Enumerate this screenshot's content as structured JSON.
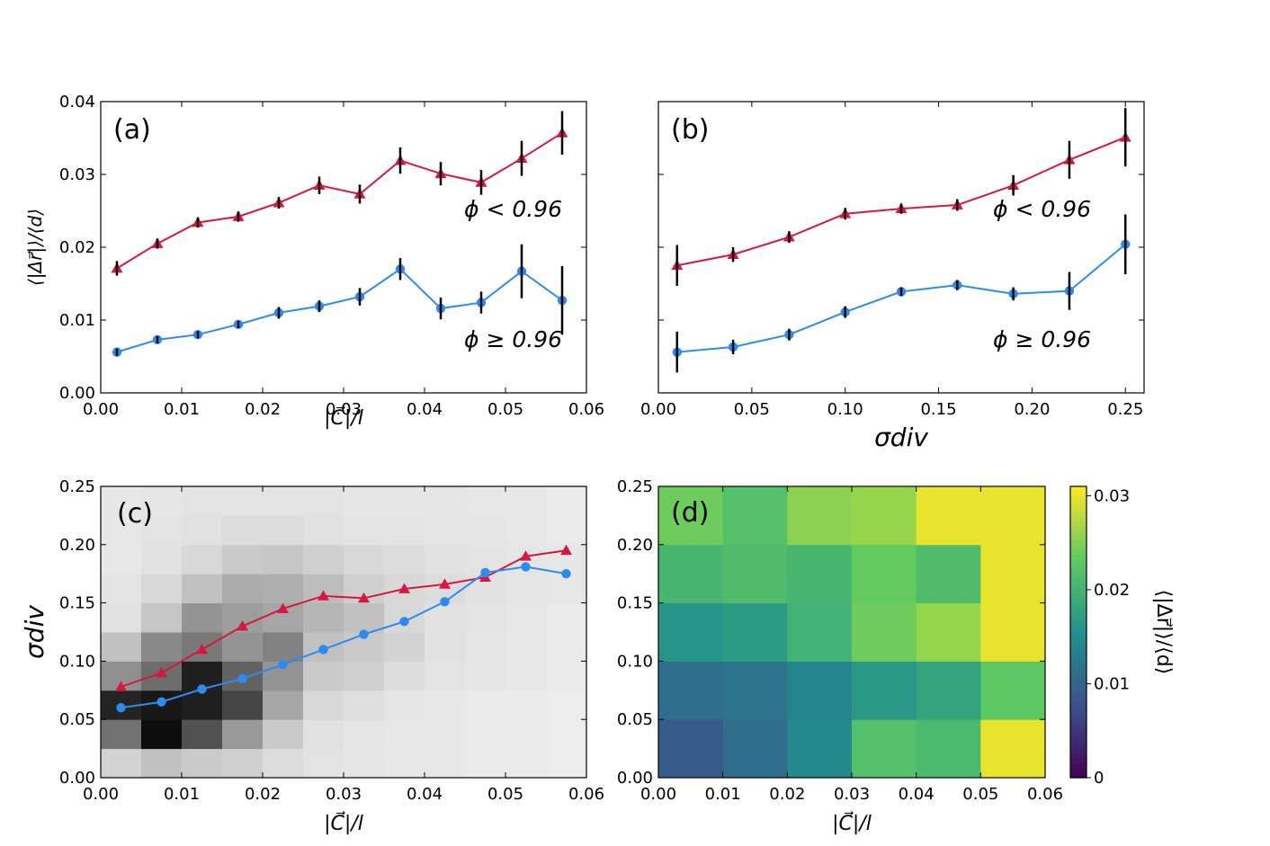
{
  "colors": {
    "red": "#d6173f",
    "blue": "#2b8cee",
    "errbar": "#000000"
  },
  "chart_data": [
    {
      "panel": "a",
      "type": "line",
      "label": "(a)",
      "xlabel": "|C⃗|/l",
      "ylabel": "⟨|Δr⃗|⟩/⟨d⟩",
      "xlim": [
        0.0,
        0.06
      ],
      "ylim": [
        0.0,
        0.04
      ],
      "xticks": [
        "0.00",
        "0.01",
        "0.02",
        "0.03",
        "0.04",
        "0.05",
        "0.06"
      ],
      "yticks": [
        "0.00",
        "0.01",
        "0.02",
        "0.03",
        "0.04"
      ],
      "x": [
        0.002,
        0.007,
        0.012,
        0.017,
        0.022,
        0.027,
        0.032,
        0.037,
        0.042,
        0.047,
        0.052,
        0.057
      ],
      "series": [
        {
          "name": "ϕ < 0.96",
          "marker": "triangle",
          "color": "#d6173f",
          "values": [
            0.0171,
            0.0205,
            0.0234,
            0.0242,
            0.0261,
            0.0285,
            0.0273,
            0.0319,
            0.0301,
            0.0289,
            0.0322,
            0.0357
          ],
          "errors": [
            0.001,
            0.0007,
            0.0007,
            0.0007,
            0.0008,
            0.0012,
            0.0013,
            0.0018,
            0.0016,
            0.0017,
            0.0024,
            0.003
          ]
        },
        {
          "name": "ϕ ≥ 0.96",
          "marker": "circle",
          "color": "#2b8cee",
          "values": [
            0.0056,
            0.0073,
            0.008,
            0.0094,
            0.011,
            0.0119,
            0.0132,
            0.017,
            0.0116,
            0.0124,
            0.0167,
            0.0127
          ],
          "errors": [
            0.0005,
            0.0005,
            0.0005,
            0.0005,
            0.0008,
            0.0008,
            0.0012,
            0.0015,
            0.0015,
            0.0015,
            0.0037,
            0.0047
          ]
        }
      ],
      "annotations": [
        "ϕ < 0.96",
        "ϕ ≥ 0.96"
      ]
    },
    {
      "panel": "b",
      "type": "line",
      "label": "(b)",
      "xlabel": "σdiv",
      "xlim": [
        0.0,
        0.26
      ],
      "ylim": [
        0.0,
        0.04
      ],
      "xticks": [
        "0.00",
        "0.05",
        "0.10",
        "0.15",
        "0.20",
        "0.25"
      ],
      "x": [
        0.01,
        0.04,
        0.07,
        0.1,
        0.13,
        0.16,
        0.19,
        0.22,
        0.25
      ],
      "series": [
        {
          "name": "ϕ < 0.96",
          "marker": "triangle",
          "color": "#d6173f",
          "values": [
            0.0175,
            0.019,
            0.0214,
            0.0246,
            0.0253,
            0.0258,
            0.0285,
            0.032,
            0.0351
          ],
          "errors": [
            0.0028,
            0.001,
            0.0008,
            0.0008,
            0.0007,
            0.0008,
            0.0014,
            0.0026,
            0.004
          ]
        },
        {
          "name": "ϕ ≥ 0.96",
          "marker": "circle",
          "color": "#2b8cee",
          "values": [
            0.0056,
            0.0063,
            0.008,
            0.0111,
            0.0139,
            0.0148,
            0.0136,
            0.014,
            0.0204
          ],
          "errors": [
            0.0028,
            0.001,
            0.0008,
            0.0008,
            0.0006,
            0.0007,
            0.0009,
            0.0026,
            0.0041
          ]
        }
      ],
      "annotations": [
        "ϕ < 0.96",
        "ϕ ≥ 0.96"
      ]
    },
    {
      "panel": "c",
      "type": "heatmap",
      "label": "(c)",
      "xlabel": "|C⃗|/l",
      "ylabel": "σdiv",
      "xlim": [
        0.0,
        0.06
      ],
      "ylim": [
        0.0,
        0.25
      ],
      "xticks": [
        "0.00",
        "0.01",
        "0.02",
        "0.03",
        "0.04",
        "0.05",
        "0.06"
      ],
      "yticks": [
        "0.00",
        "0.05",
        "0.10",
        "0.15",
        "0.20",
        "0.25"
      ],
      "grid_x_edges": [
        0.0,
        0.005,
        0.01,
        0.015,
        0.02,
        0.025,
        0.03,
        0.035,
        0.04,
        0.045,
        0.05,
        0.055,
        0.06
      ],
      "grid_y_edges": [
        0.0,
        0.025,
        0.05,
        0.075,
        0.1,
        0.125,
        0.15,
        0.175,
        0.2,
        0.225,
        0.25
      ],
      "density": [
        [
          0.12,
          0.2,
          0.16,
          0.14,
          0.08,
          0.05,
          0.04,
          0.03,
          0.03,
          0.02,
          0.02,
          0.01
        ],
        [
          0.55,
          1.0,
          0.7,
          0.38,
          0.16,
          0.06,
          0.04,
          0.03,
          0.03,
          0.02,
          0.02,
          0.01
        ],
        [
          0.9,
          0.95,
          0.92,
          0.75,
          0.32,
          0.1,
          0.07,
          0.04,
          0.03,
          0.02,
          0.02,
          0.01
        ],
        [
          0.42,
          0.58,
          0.92,
          0.62,
          0.4,
          0.16,
          0.14,
          0.08,
          0.05,
          0.04,
          0.03,
          0.02
        ],
        [
          0.2,
          0.45,
          0.52,
          0.4,
          0.48,
          0.2,
          0.16,
          0.12,
          0.06,
          0.04,
          0.03,
          0.02
        ],
        [
          0.06,
          0.18,
          0.4,
          0.36,
          0.32,
          0.25,
          0.2,
          0.1,
          0.06,
          0.05,
          0.03,
          0.02
        ],
        [
          0.05,
          0.1,
          0.2,
          0.3,
          0.28,
          0.22,
          0.14,
          0.1,
          0.08,
          0.06,
          0.04,
          0.03
        ],
        [
          0.03,
          0.06,
          0.1,
          0.16,
          0.18,
          0.14,
          0.1,
          0.08,
          0.06,
          0.05,
          0.04,
          0.03
        ],
        [
          0.03,
          0.05,
          0.06,
          0.08,
          0.08,
          0.06,
          0.05,
          0.05,
          0.04,
          0.04,
          0.03,
          0.02
        ],
        [
          0.03,
          0.04,
          0.05,
          0.05,
          0.05,
          0.05,
          0.04,
          0.04,
          0.04,
          0.03,
          0.03,
          0.02
        ]
      ],
      "x": [
        0.0025,
        0.0075,
        0.0125,
        0.0175,
        0.0225,
        0.0275,
        0.0325,
        0.0375,
        0.0425,
        0.0475,
        0.0525,
        0.0575
      ],
      "series": [
        {
          "name": "ϕ < 0.96",
          "marker": "triangle",
          "color": "#d6173f",
          "values": [
            0.078,
            0.09,
            0.11,
            0.13,
            0.145,
            0.156,
            0.154,
            0.162,
            0.166,
            0.172,
            0.19,
            0.195
          ]
        },
        {
          "name": "ϕ ≥ 0.96",
          "marker": "circle",
          "color": "#2b8cee",
          "values": [
            0.06,
            0.065,
            0.076,
            0.085,
            0.097,
            0.11,
            0.123,
            0.134,
            0.151,
            0.176,
            0.181,
            0.175
          ]
        }
      ]
    },
    {
      "panel": "d",
      "type": "heatmap",
      "label": "(d)",
      "xlabel": "|C⃗|/l",
      "colorbar_label": "⟨|Δr⃗|⟩/⟨d⟩",
      "xlim": [
        0.0,
        0.06
      ],
      "ylim": [
        0.0,
        0.25
      ],
      "xticks": [
        "0.00",
        "0.01",
        "0.02",
        "0.03",
        "0.04",
        "0.05",
        "0.06"
      ],
      "yticks": [
        "0.00",
        "0.05",
        "0.10",
        "0.15",
        "0.20",
        "0.25"
      ],
      "colorbar_range": [
        0.0,
        0.031
      ],
      "colorbar_ticks": [
        "0",
        "0.01",
        "0.02",
        "0.03"
      ],
      "grid_x_edges": [
        0.0,
        0.01,
        0.02,
        0.03,
        0.04,
        0.05,
        0.06
      ],
      "grid_y_edges": [
        0.0,
        0.05,
        0.1,
        0.15,
        0.2,
        0.25
      ],
      "values": [
        [
          0.009,
          0.011,
          0.0145,
          0.022,
          0.021,
          0.03
        ],
        [
          0.011,
          0.012,
          0.014,
          0.0165,
          0.018,
          0.023
        ],
        [
          0.016,
          0.017,
          0.02,
          0.024,
          0.026,
          0.03
        ],
        [
          0.0205,
          0.0215,
          0.0205,
          0.0235,
          0.0215,
          0.03
        ],
        [
          0.024,
          0.022,
          0.0255,
          0.026,
          0.03,
          0.03
        ]
      ]
    }
  ]
}
